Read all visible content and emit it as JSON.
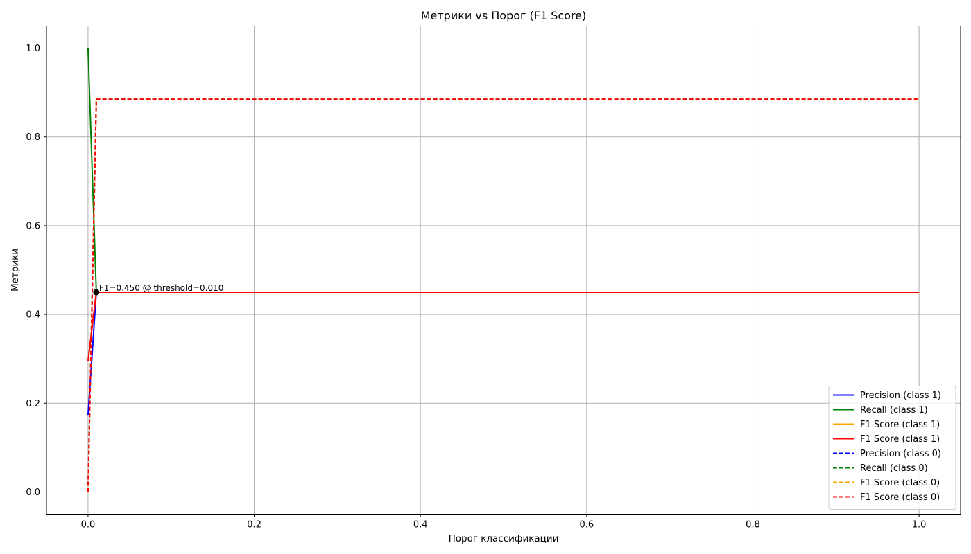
{
  "chart_data": {
    "type": "line",
    "title": "Метрики vs Порог (F1 Score)",
    "xlabel": "Порог классификации",
    "ylabel": "Метрики",
    "xlim": [
      -0.05,
      1.05
    ],
    "ylim": [
      -0.05,
      1.05
    ],
    "xticks": [
      0.0,
      0.2,
      0.4,
      0.6,
      0.8,
      1.0
    ],
    "xtick_labels": [
      "0.0",
      "0.2",
      "0.4",
      "0.6",
      "0.8",
      "1.0"
    ],
    "yticks": [
      0.0,
      0.2,
      0.4,
      0.6,
      0.8,
      1.0
    ],
    "ytick_labels": [
      "0.0",
      "0.2",
      "0.4",
      "0.6",
      "0.8",
      "1.0"
    ],
    "grid": true,
    "legend_position": "lower-right",
    "series": [
      {
        "name": "Precision (class 1)",
        "color": "#0000ff",
        "dash": "solid",
        "x": [
          0.0,
          0.01,
          1.0
        ],
        "y": [
          0.173,
          0.45,
          0.45
        ]
      },
      {
        "name": "Recall (class 1)",
        "color": "#008000",
        "dash": "solid",
        "x": [
          0.0,
          0.01,
          1.0
        ],
        "y": [
          1.0,
          0.45,
          0.45
        ]
      },
      {
        "name": "F1 Score (class 1)",
        "color": "#ffa500",
        "dash": "solid",
        "x": [
          0.0,
          0.01,
          1.0
        ],
        "y": [
          0.295,
          0.45,
          0.45
        ]
      },
      {
        "name": "F1 Score (class 1)",
        "color": "#ff0000",
        "dash": "solid",
        "x": [
          0.0,
          0.01,
          1.0
        ],
        "y": [
          0.295,
          0.45,
          0.45
        ]
      },
      {
        "name": "Precision (class 0)",
        "color": "#0000ff",
        "dash": "dashed",
        "x": [
          0.0,
          0.01,
          1.0
        ],
        "y": [
          0.0,
          0.885,
          0.885
        ]
      },
      {
        "name": "Recall (class 0)",
        "color": "#008000",
        "dash": "dashed",
        "x": [
          0.0,
          0.01,
          1.0
        ],
        "y": [
          0.0,
          0.885,
          0.885
        ]
      },
      {
        "name": "F1 Score (class 0)",
        "color": "#ffa500",
        "dash": "dashed",
        "x": [
          0.0,
          0.01,
          1.0
        ],
        "y": [
          0.0,
          0.885,
          0.885
        ]
      },
      {
        "name": "F1 Score (class 0)",
        "color": "#ff0000",
        "dash": "dashed",
        "x": [
          0.0,
          0.01,
          1.0
        ],
        "y": [
          0.0,
          0.885,
          0.885
        ]
      }
    ],
    "annotation": {
      "text": "F1=0.450 @ threshold=0.010",
      "x": 0.01,
      "y": 0.45,
      "marker_color": "#000000"
    }
  }
}
